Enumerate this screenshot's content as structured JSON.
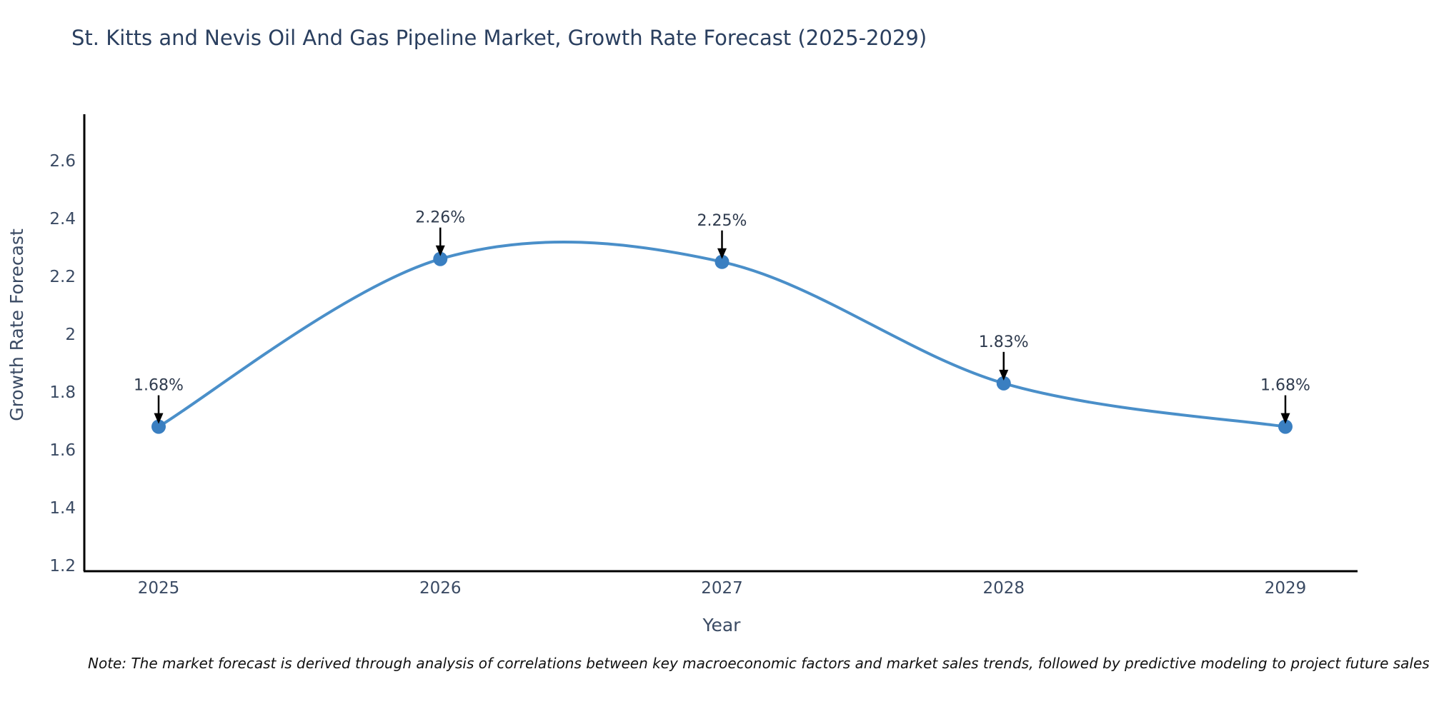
{
  "chart_data": {
    "type": "line",
    "title": "St. Kitts and Nevis Oil And Gas Pipeline Market, Growth Rate Forecast (2025-2029)",
    "xlabel": "Year",
    "ylabel": "Growth Rate Forecast",
    "categories": [
      "2025",
      "2026",
      "2027",
      "2028",
      "2029"
    ],
    "series": [
      {
        "name": "Growth Rate Forecast",
        "values": [
          1.68,
          2.26,
          2.25,
          1.83,
          1.68
        ],
        "point_labels": [
          "1.68%",
          "2.26%",
          "2.25%",
          "1.83%",
          "1.68%"
        ]
      }
    ],
    "yticks": [
      2.6,
      2.4,
      2.2,
      2.0,
      1.8,
      1.6,
      1.4,
      1.2
    ],
    "ytick_labels": [
      "2.6",
      "2.4",
      "2.2",
      "2",
      "1.8",
      "1.6",
      "1.4",
      "1.2"
    ],
    "ylim": [
      1.18,
      2.77
    ],
    "line_shape": "spline",
    "grid": false,
    "legend_position": "none",
    "annotations_have_arrows": true,
    "note": "Note: The market forecast is derived through analysis of correlations between key macroeconomic factors and market sales trends, followed by predictive modeling to project future sales",
    "colors": {
      "line": "#4a8fc9",
      "marker": "#3a7fc1",
      "axis": "#000000",
      "title": "#2a3f5f",
      "tick_label": "#3a4a63",
      "axis_title": "#3a4a63",
      "annotation_text": "#2f3b4e",
      "annotation_arrow": "#000000",
      "note_text": "#111111",
      "background": "#ffffff"
    }
  }
}
